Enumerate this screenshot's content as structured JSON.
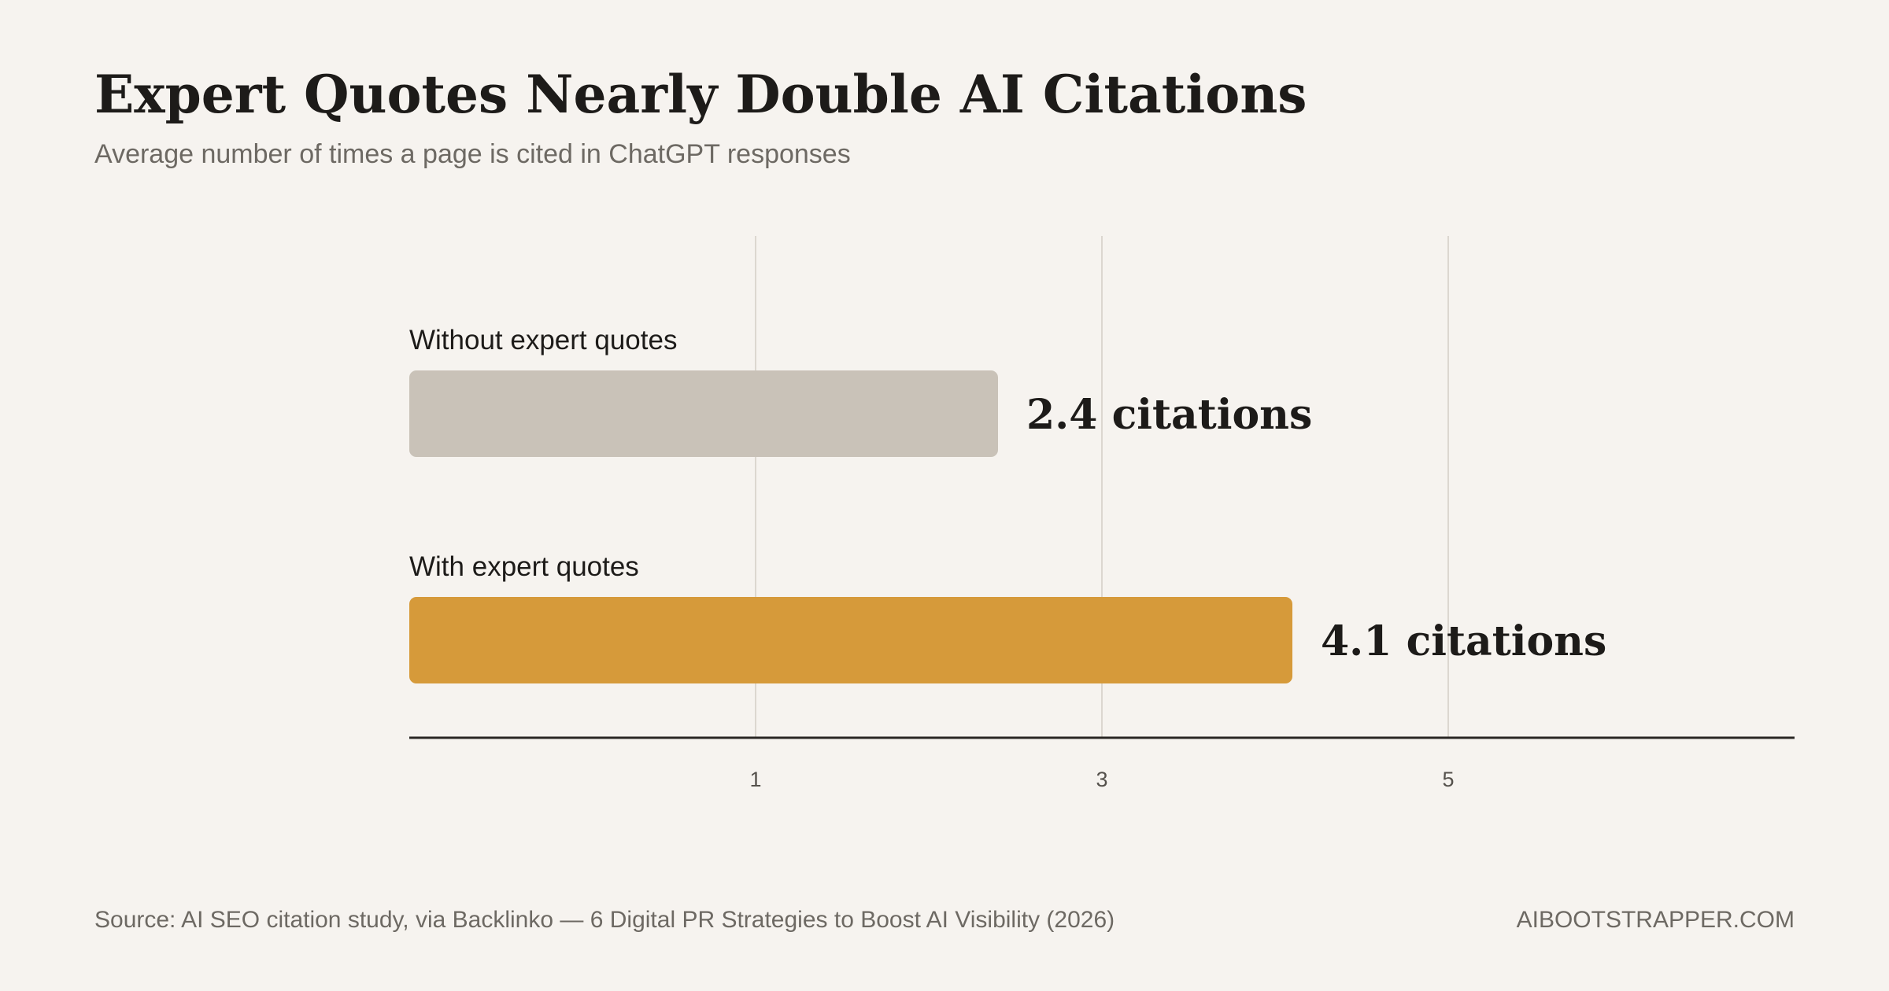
{
  "header": {
    "title": "Expert Quotes Nearly Double AI Citations",
    "subtitle": "Average number of times a page is cited in ChatGPT responses"
  },
  "footer": {
    "source": "Source: AI SEO citation study, via Backlinko — 6 Digital PR Strategies to Boost AI Visibility (2026)",
    "brand": "AIBOOTSTRAPPER.COM"
  },
  "colors": {
    "background": "#f6f3ef",
    "bar_without": "#c9c2b8",
    "bar_with": "#d69a3a",
    "gridline": "#dcd7d0",
    "axis": "#2a2724",
    "text_dark": "#1d1b19",
    "text_muted": "#6d6963"
  },
  "chart_data": {
    "type": "bar",
    "orientation": "horizontal",
    "categories": [
      "Without expert quotes",
      "With expert quotes"
    ],
    "values": [
      2.4,
      4.1
    ],
    "value_labels": [
      "2.4 citations",
      "4.1 citations"
    ],
    "bar_colors": [
      "#c9c2b8",
      "#d69a3a"
    ],
    "title": "Expert Quotes Nearly Double AI Citations",
    "subtitle": "Average number of times a page is cited in ChatGPT responses",
    "xlabel": "",
    "ylabel": "",
    "xlim": [
      -1,
      7
    ],
    "xticks": [
      1,
      3,
      5
    ],
    "xtick_labels": [
      "1",
      "3",
      "5"
    ],
    "grid": "vertical",
    "legend": "none"
  }
}
